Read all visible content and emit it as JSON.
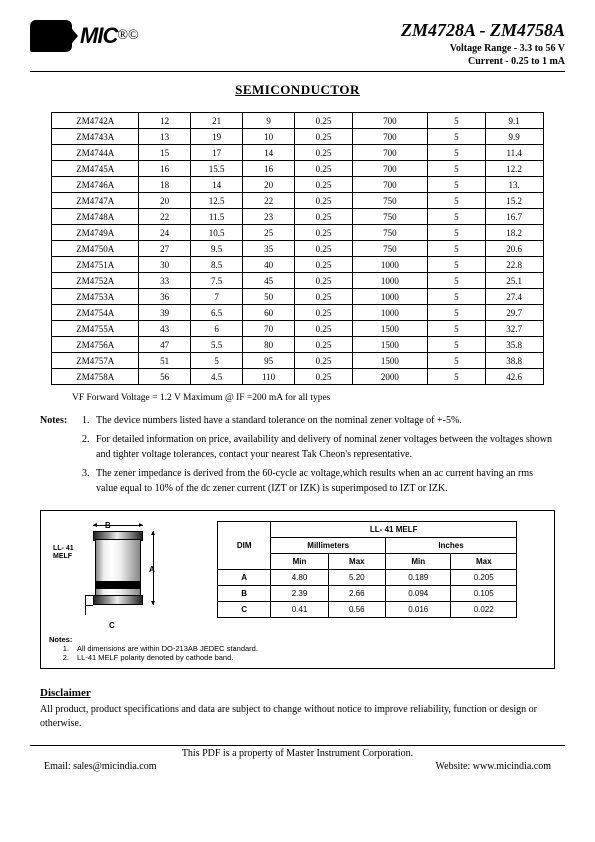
{
  "header": {
    "logo_text": "MIC",
    "reg": "®",
    "copy": "©",
    "title": "ZM4728A - ZM4758A",
    "sub1": "Voltage Range - 3.3 to 56 V",
    "sub2": "Current - 0.25 to 1 mA"
  },
  "section_title": "SEMICONDUCTOR",
  "table": {
    "col_widths": [
      "15%",
      "9%",
      "9%",
      "9%",
      "10%",
      "13%",
      "10%",
      "10%"
    ],
    "rows": [
      [
        "ZM4742A",
        "12",
        "21",
        "9",
        "0.25",
        "700",
        "5",
        "9.1"
      ],
      [
        "ZM4743A",
        "13",
        "19",
        "10",
        "0.25",
        "700",
        "5",
        "9.9"
      ],
      [
        "ZM4744A",
        "15",
        "17",
        "14",
        "0.25",
        "700",
        "5",
        "11.4"
      ],
      [
        "ZM4745A",
        "16",
        "15.5",
        "16",
        "0.25",
        "700",
        "5",
        "12.2"
      ],
      [
        "ZM4746A",
        "18",
        "14",
        "20",
        "0.25",
        "700",
        "5",
        "13."
      ],
      [
        "ZM4747A",
        "20",
        "12.5",
        "22",
        "0.25",
        "750",
        "5",
        "15.2"
      ],
      [
        "ZM4748A",
        "22",
        "11.5",
        "23",
        "0.25",
        "750",
        "5",
        "16.7"
      ],
      [
        "ZM4749A",
        "24",
        "10.5",
        "25",
        "0.25",
        "750",
        "5",
        "18.2"
      ],
      [
        "ZM4750A",
        "27",
        "9.5",
        "35",
        "0.25",
        "750",
        "5",
        "20.6"
      ],
      [
        "ZM4751A",
        "30",
        "8.5",
        "40",
        "0.25",
        "1000",
        "5",
        "22.8"
      ],
      [
        "ZM4752A",
        "33",
        "7.5",
        "45",
        "0.25",
        "1000",
        "5",
        "25.1"
      ],
      [
        "ZM4753A",
        "36",
        "7",
        "50",
        "0.25",
        "1000",
        "5",
        "27.4"
      ],
      [
        "ZM4754A",
        "39",
        "6.5",
        "60",
        "0.25",
        "1000",
        "5",
        "29.7"
      ],
      [
        "ZM4755A",
        "43",
        "6",
        "70",
        "0.25",
        "1500",
        "5",
        "32.7"
      ],
      [
        "ZM4756A",
        "47",
        "5.5",
        "80",
        "0.25",
        "1500",
        "5",
        "35.8"
      ],
      [
        "ZM4757A",
        "51",
        "5",
        "95",
        "0.25",
        "1500",
        "5",
        "38.8"
      ],
      [
        "ZM4758A",
        "56",
        "4.5",
        "110",
        "0.25",
        "2000",
        "5",
        "42.6"
      ]
    ]
  },
  "vf_note": "VF Forward Voltage = 1.2 V Maximum @ IF =200 mA for all types",
  "notes_label": "Notes:",
  "notes": [
    "The device numbers listed have a standard tolerance on the nominal zener voltage of +-5%.",
    "For detailed information on price, availability and delivery of nominal zener voltages between the voltages shown and tighter voltage tolerances, contact your nearest Tak Cheon's representative.",
    "The zener impedance is derived from the 60-cycle ac voltage,which results when an ac current having an rms value equal to 10% of the dc zener current (IZT or IZK) is superimposed to IZT or IZK."
  ],
  "dim": {
    "draw_label": "LL- 41\nMELF",
    "b": "B",
    "a": "A",
    "c": "C",
    "title": "LL- 41 MELF",
    "col_dim": "DIM",
    "col_mm": "Millimeters",
    "col_in": "Inches",
    "col_min": "Min",
    "col_max": "Max",
    "rows": [
      [
        "A",
        "4.80",
        "5.20",
        "0.189",
        "0.205"
      ],
      [
        "B",
        "2.39",
        "2.66",
        "0.094",
        "0.105"
      ],
      [
        "C",
        "0.41",
        "0.56",
        "0.016",
        "0.022"
      ]
    ],
    "notes_label": "Notes:",
    "notes": [
      "All dimensions are within DO-213AB JEDEC standard.",
      "LL-41 MELF polarity denoted by cathode band."
    ]
  },
  "disclaimer": {
    "heading": "Disclaimer",
    "text": "All product, product specifications and data are subject to change without notice to improve reliability, function or design or otherwise."
  },
  "footer": {
    "line1": "This PDF is a property of Master Instrument Corporation.",
    "email_lbl": "Email: ",
    "email": "sales@micindia.com",
    "site_lbl": "Website: ",
    "site": "www.micindia.com"
  }
}
